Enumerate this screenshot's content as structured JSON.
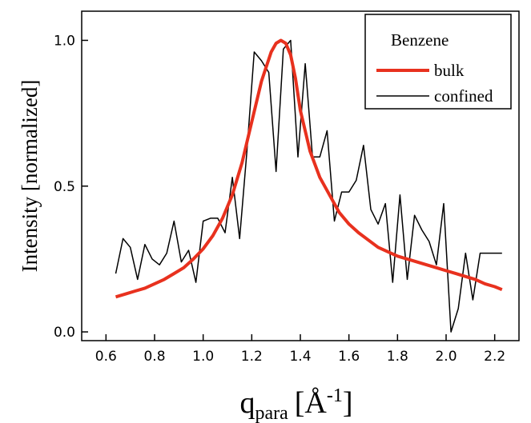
{
  "chart_data": {
    "type": "line",
    "xlabel": {
      "main": "q",
      "subscript": "para",
      "unit_open": "[",
      "unit_base": "Å",
      "unit_sup": "-1",
      "unit_close": "]"
    },
    "ylabel": "Intensity [normalized]",
    "xlim": [
      0.5,
      2.3
    ],
    "ylim": [
      -0.03,
      1.1
    ],
    "xticks": [
      0.6,
      0.8,
      1.0,
      1.2,
      1.4,
      1.6,
      1.8,
      2.0,
      2.2
    ],
    "xtick_labels": [
      "0.6",
      "0.8",
      "1.0",
      "1.2",
      "1.4",
      "1.6",
      "1.8",
      "2.0",
      "2.2"
    ],
    "yticks": [
      0.0,
      0.5,
      1.0
    ],
    "ytick_labels": [
      "0.0",
      "0.5",
      "1.0"
    ],
    "legend": {
      "title": "Benzene",
      "placement": "top-right"
    },
    "series": [
      {
        "name": "bulk",
        "color": "#e8311e",
        "x": [
          0.64,
          0.68,
          0.72,
          0.76,
          0.8,
          0.84,
          0.88,
          0.92,
          0.96,
          1.0,
          1.04,
          1.08,
          1.12,
          1.16,
          1.2,
          1.24,
          1.28,
          1.3,
          1.32,
          1.34,
          1.36,
          1.38,
          1.4,
          1.44,
          1.48,
          1.52,
          1.56,
          1.6,
          1.64,
          1.68,
          1.72,
          1.76,
          1.8,
          1.84,
          1.88,
          1.92,
          1.96,
          2.0,
          2.04,
          2.08,
          2.12,
          2.16,
          2.2,
          2.23
        ],
        "y": [
          0.12,
          0.13,
          0.14,
          0.15,
          0.165,
          0.18,
          0.2,
          0.22,
          0.25,
          0.285,
          0.33,
          0.39,
          0.47,
          0.58,
          0.72,
          0.86,
          0.96,
          0.99,
          1.0,
          0.99,
          0.95,
          0.87,
          0.76,
          0.62,
          0.53,
          0.47,
          0.41,
          0.37,
          0.34,
          0.315,
          0.29,
          0.275,
          0.26,
          0.25,
          0.24,
          0.23,
          0.22,
          0.21,
          0.2,
          0.19,
          0.18,
          0.165,
          0.155,
          0.145
        ]
      },
      {
        "name": "confined",
        "color": "#000000",
        "x": [
          0.64,
          0.67,
          0.7,
          0.73,
          0.76,
          0.79,
          0.82,
          0.85,
          0.88,
          0.91,
          0.94,
          0.97,
          1.0,
          1.03,
          1.06,
          1.09,
          1.12,
          1.15,
          1.18,
          1.21,
          1.24,
          1.27,
          1.3,
          1.33,
          1.36,
          1.39,
          1.42,
          1.45,
          1.48,
          1.51,
          1.54,
          1.57,
          1.6,
          1.63,
          1.66,
          1.69,
          1.72,
          1.75,
          1.78,
          1.81,
          1.84,
          1.87,
          1.9,
          1.93,
          1.96,
          1.99,
          2.02,
          2.05,
          2.08,
          2.11,
          2.14,
          2.17,
          2.2,
          2.23
        ],
        "y": [
          0.2,
          0.32,
          0.29,
          0.18,
          0.3,
          0.25,
          0.23,
          0.27,
          0.38,
          0.24,
          0.28,
          0.17,
          0.38,
          0.39,
          0.39,
          0.34,
          0.53,
          0.32,
          0.62,
          0.96,
          0.93,
          0.89,
          0.55,
          0.97,
          1.0,
          0.6,
          0.92,
          0.6,
          0.6,
          0.69,
          0.38,
          0.48,
          0.48,
          0.52,
          0.64,
          0.42,
          0.37,
          0.44,
          0.17,
          0.47,
          0.18,
          0.4,
          0.35,
          0.31,
          0.23,
          0.44,
          0.0,
          0.08,
          0.27,
          0.11,
          0.27,
          0.27,
          0.27,
          0.27
        ]
      }
    ]
  }
}
